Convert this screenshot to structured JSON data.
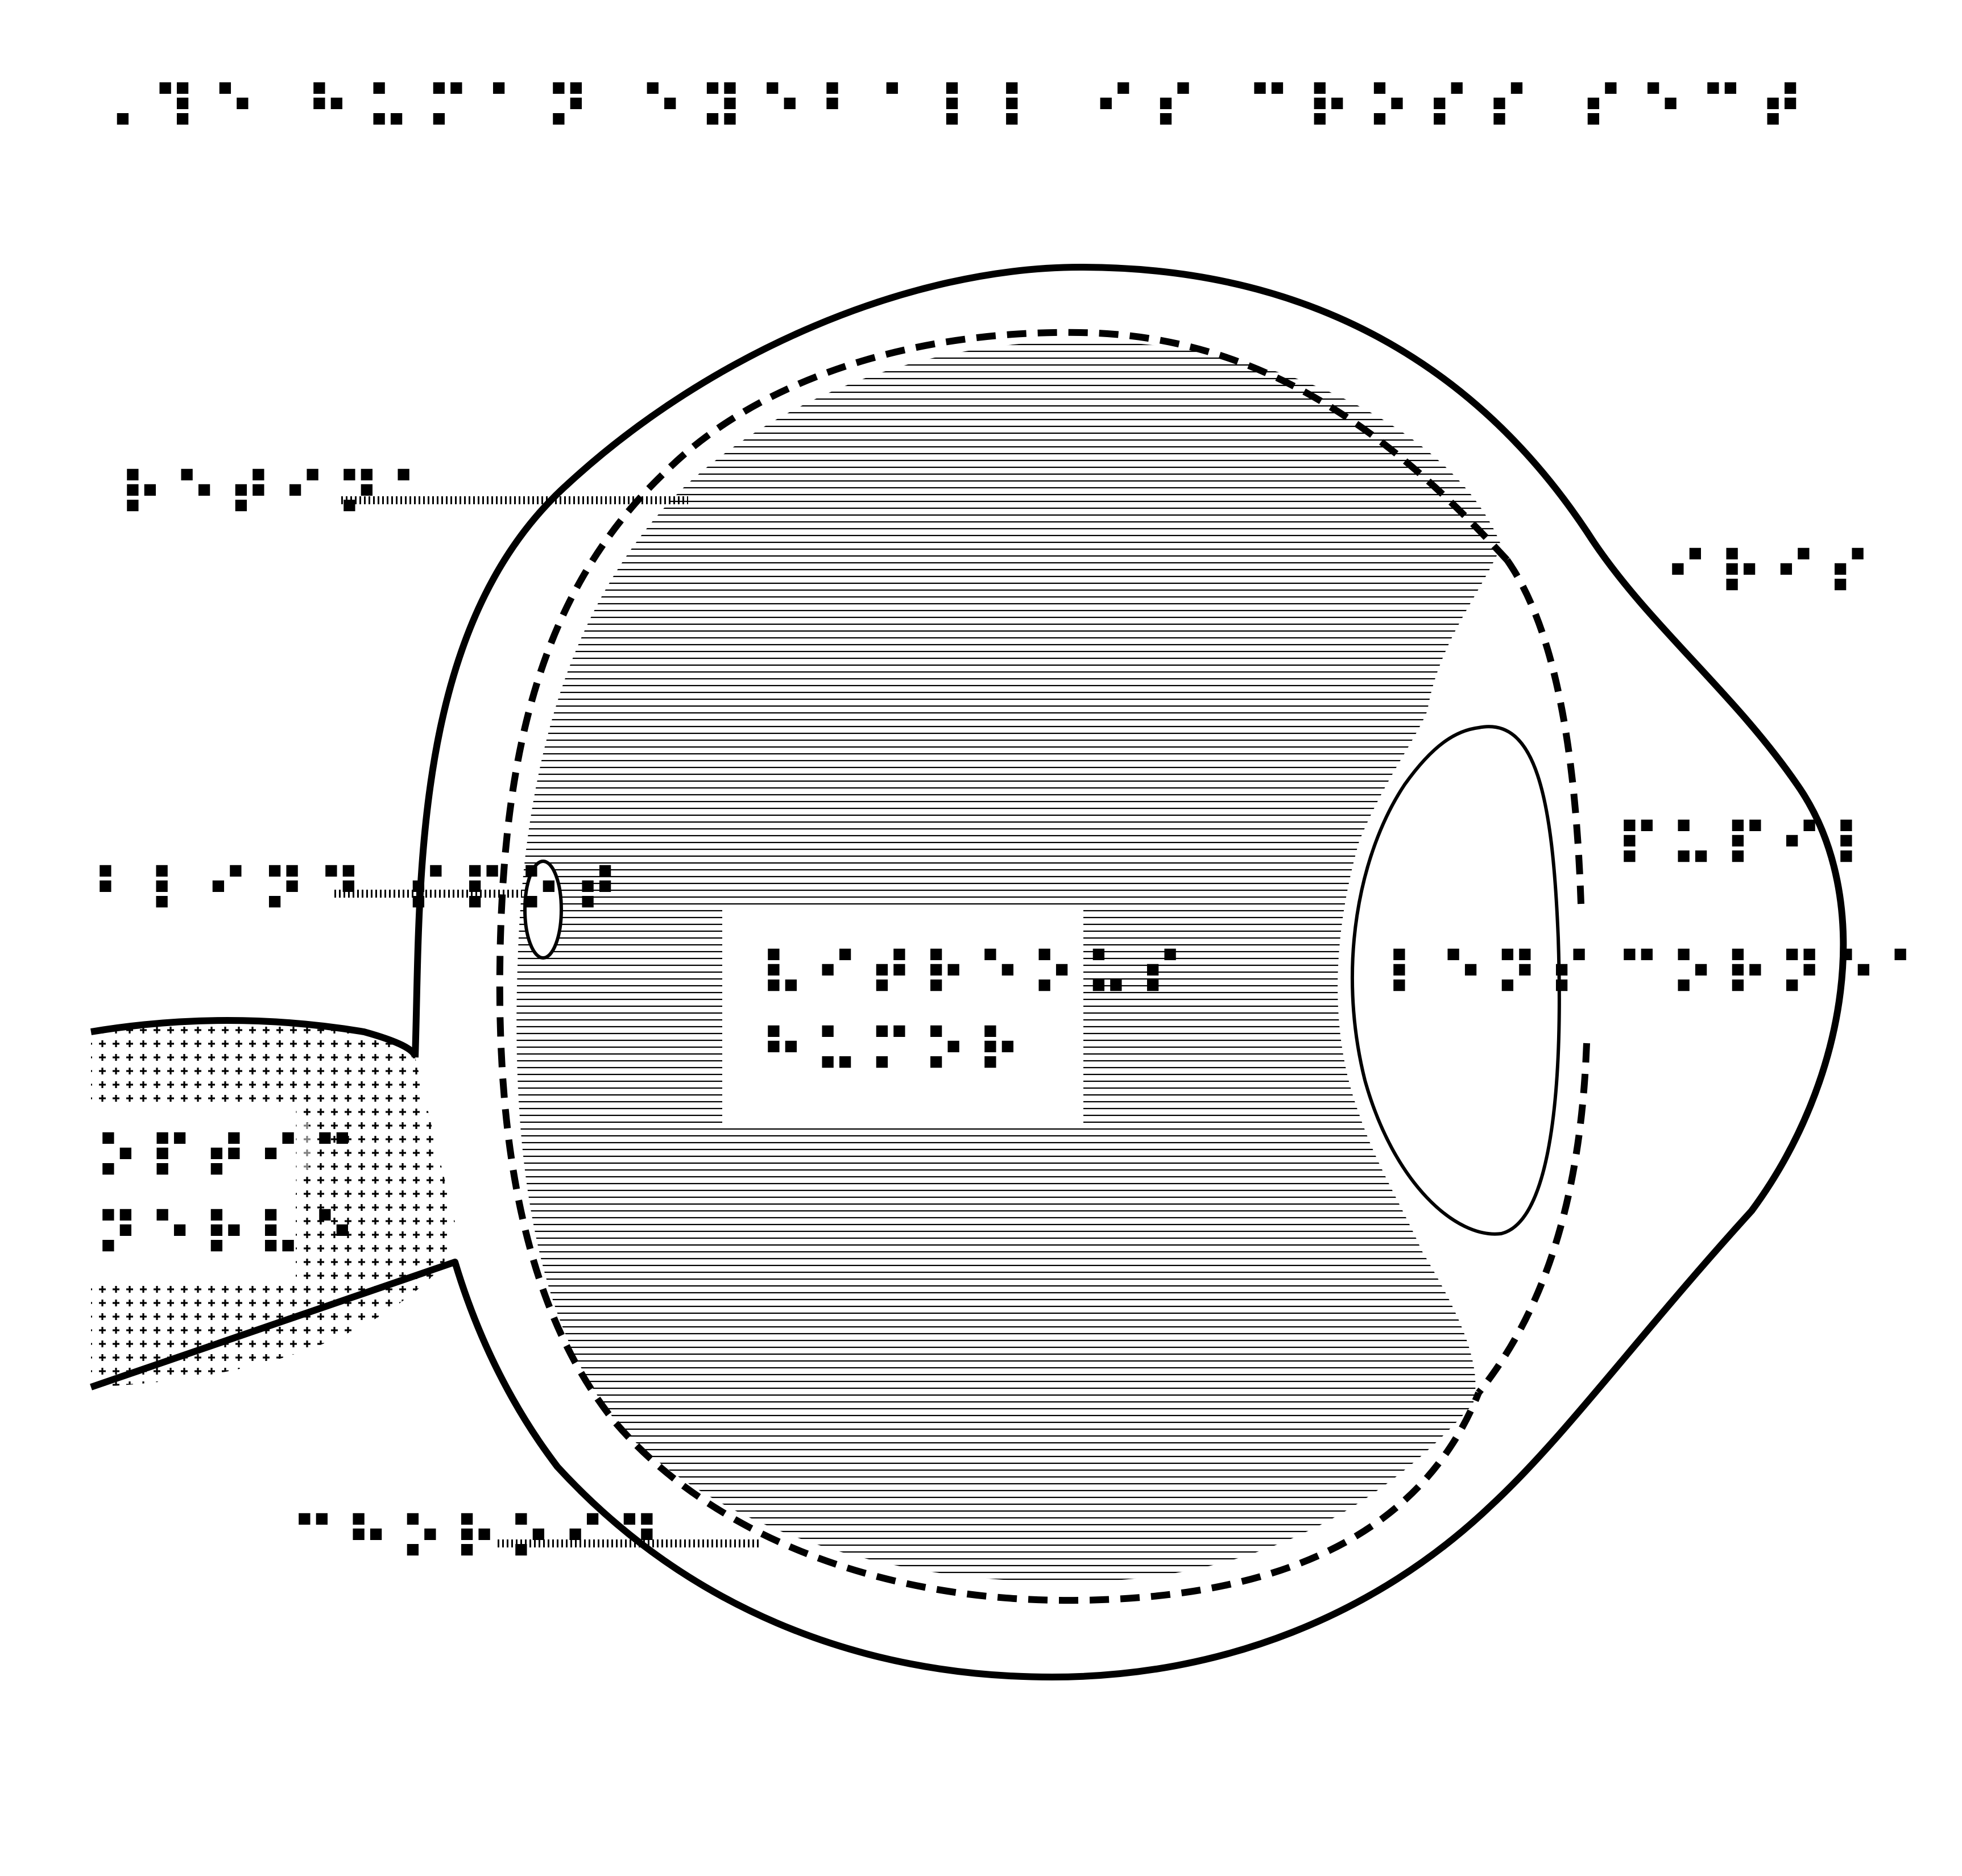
{
  "title": "⠠⠹⠑ ⠓⠥⠍⠁⠝ ⠑⠽⠑⠃⠁⠇⠇ ⠊⠎ ⠉⠗⠕⠎⠎ ⠎⠑⠉⠞",
  "labels": {
    "retina": "⠗⠑⠞⠊⠝⠁",
    "iris": "⠊⠗⠊⠎",
    "blind_spot": "⠃⠇⠊⠝⠙ ⠎⠏⠕⠞",
    "vitreous_line1": "⠧⠊⠞⠗⠑⠕⠥⠎",
    "vitreous_line2": "⠓⠥⠍⠕⠗",
    "lens": "⠇⠑⠝⠎",
    "pupil_line1": "⠏⠥⠏⠊⠇",
    "pupil_line2": "⠉⠕⠗⠝⠑⠁",
    "optic_nerve_line1": "⠕⠏⠞⠊⠉",
    "optic_nerve_line2": "⠝⠑⠗⠧⠑",
    "choroid": "⠉⠓⠕⠗⠕⠊⠙"
  },
  "colors": {
    "ink": "#000000",
    "paper": "#ffffff"
  }
}
